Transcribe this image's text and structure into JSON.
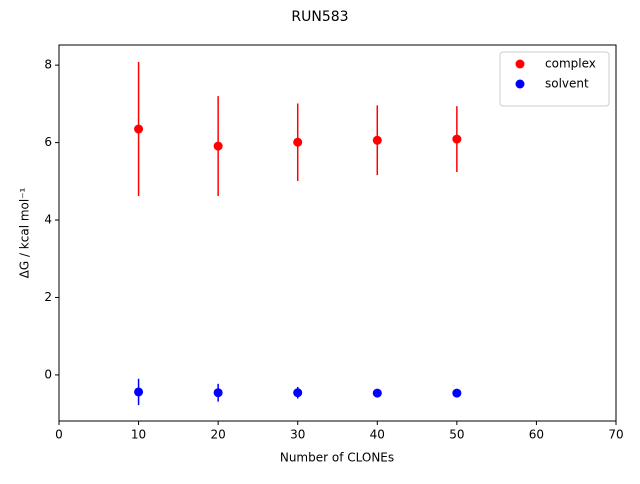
{
  "chart_data": {
    "type": "scatter",
    "title": "RUN583",
    "xlabel": "Number of CLONEs",
    "ylabel": "ΔG / kcal mol⁻¹",
    "xlim": [
      0,
      70
    ],
    "xticks": [
      0,
      10,
      20,
      30,
      40,
      50,
      60,
      70
    ],
    "ylim": [
      -1.19,
      8.52
    ],
    "yticks": [
      0,
      2,
      4,
      6,
      8
    ],
    "legend": "upper right",
    "series": [
      {
        "name": "complex",
        "color": "#ff0000",
        "x": [
          10,
          20,
          30,
          40,
          50
        ],
        "values": [
          6.35,
          5.91,
          6.01,
          6.06,
          6.09
        ],
        "errors": [
          1.73,
          1.29,
          1.0,
          0.9,
          0.85
        ]
      },
      {
        "name": "solvent",
        "color": "#0000ff",
        "x": [
          10,
          20,
          30,
          40,
          50
        ],
        "values": [
          -0.44,
          -0.46,
          -0.46,
          -0.47,
          -0.47
        ],
        "errors": [
          0.34,
          0.23,
          0.15,
          0.1,
          0.08
        ]
      }
    ]
  }
}
